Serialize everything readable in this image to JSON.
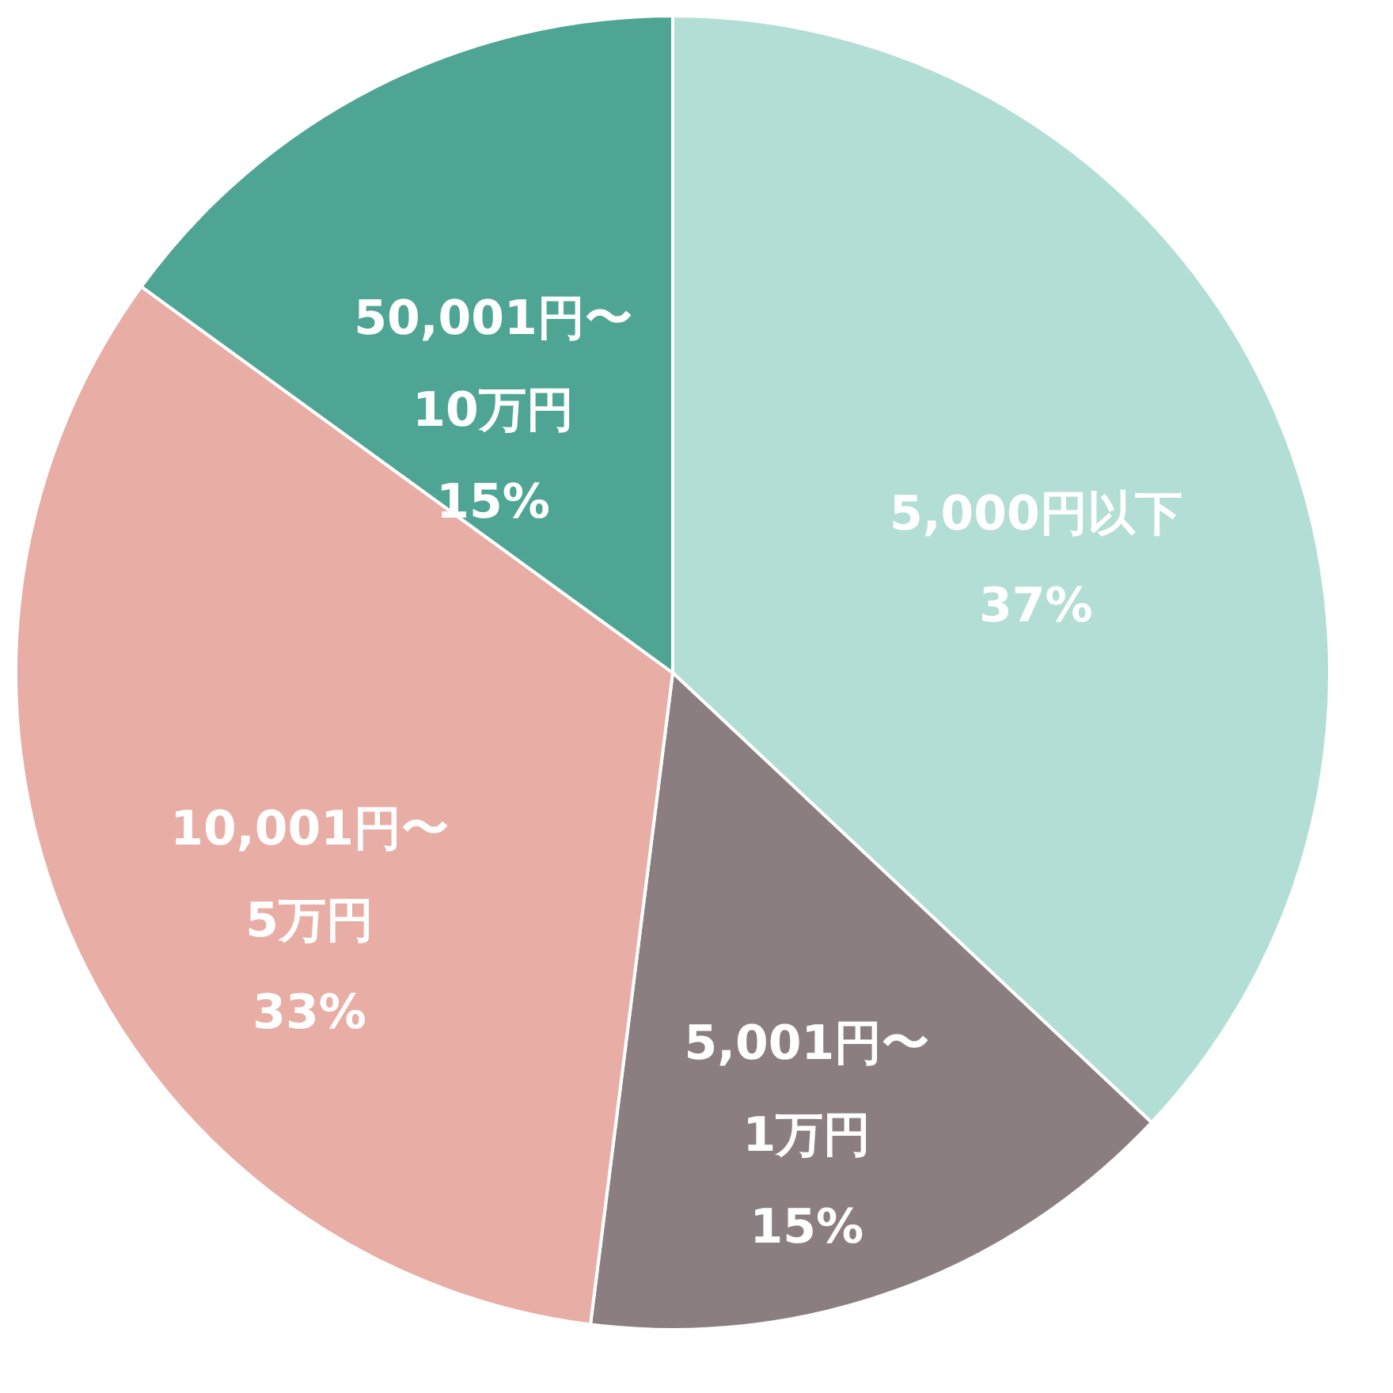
{
  "chart_data": {
    "type": "pie",
    "categories": [
      "5,000円以下",
      "5,001円〜\n1万円",
      "10,001円〜\n5万円",
      "50,001円〜\n10万円"
    ],
    "values": [
      37,
      15,
      33,
      15
    ],
    "value_labels": [
      "37%",
      "15%",
      "33%",
      "15%"
    ],
    "colors": [
      "#b3ded5",
      "#8a7e80",
      "#e8ada5",
      "#4ea593"
    ],
    "legend": false
  }
}
